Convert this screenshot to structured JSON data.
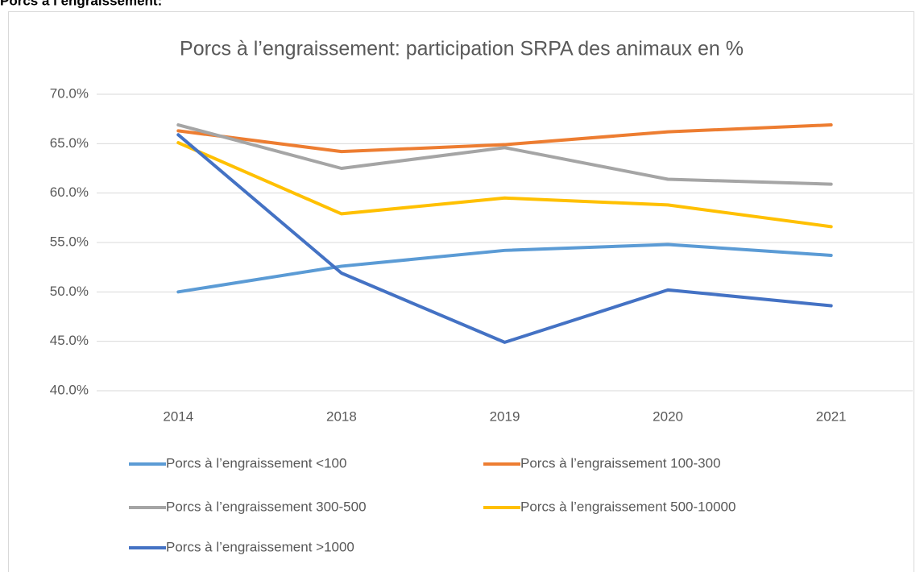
{
  "heading": "Porcs à l’engraissement:",
  "chart_data": {
    "type": "line",
    "title": "Porcs à l’engraissement: participation SRPA des animaux en %",
    "categories": [
      "2014",
      "2018",
      "2019",
      "2020",
      "2021"
    ],
    "series": [
      {
        "name": "Porcs à l’engraissement <100",
        "color": "#5b9bd5",
        "values": [
          50.0,
          52.6,
          54.2,
          54.8,
          53.7
        ]
      },
      {
        "name": "Porcs à l’engraissement 100-300",
        "color": "#ed7d31",
        "values": [
          66.3,
          64.2,
          64.9,
          66.2,
          66.9
        ]
      },
      {
        "name": "Porcs à l’engraissement 300-500",
        "color": "#a5a5a5",
        "values": [
          66.9,
          62.5,
          64.6,
          61.4,
          60.9
        ]
      },
      {
        "name": "Porcs à l’engraissement 500-10000",
        "color": "#ffc000",
        "values": [
          65.1,
          57.9,
          59.5,
          58.8,
          56.6
        ]
      },
      {
        "name": "Porcs à l’engraissement >1000",
        "color": "#4472c4",
        "values": [
          65.9,
          51.9,
          44.9,
          50.2,
          48.6
        ]
      }
    ],
    "ylim": [
      40,
      70
    ],
    "yticks": [
      {
        "value": 40,
        "label": "40.0%"
      },
      {
        "value": 45,
        "label": "45.0%"
      },
      {
        "value": 50,
        "label": "50.0%"
      },
      {
        "value": 55,
        "label": "55.0%"
      },
      {
        "value": 60,
        "label": "60.0%"
      },
      {
        "value": 65,
        "label": "65.0%"
      },
      {
        "value": 70,
        "label": "70.0%"
      }
    ],
    "grid": true,
    "legend_position": "bottom"
  }
}
